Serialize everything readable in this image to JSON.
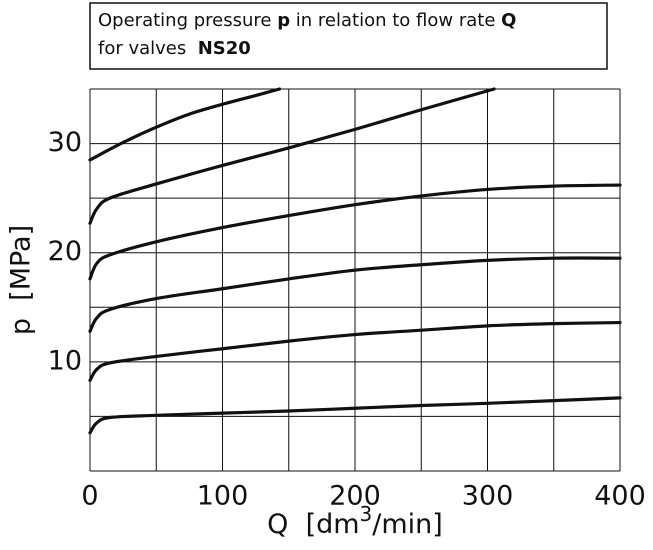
{
  "chart_data": {
    "type": "line",
    "title_lines": [
      [
        "Operating pressure ",
        "p",
        " in relation to flow rate ",
        "Q"
      ],
      [
        "for valves  ",
        "NS20"
      ]
    ],
    "xlabel": [
      "Q  [dm",
      "3",
      "/min]"
    ],
    "ylabel": "p  [MPa]",
    "xlim": [
      0,
      400
    ],
    "ylim": [
      0,
      35
    ],
    "xticks": [
      0,
      100,
      200,
      300,
      400
    ],
    "yticks": [
      10,
      20,
      30
    ],
    "xgrid": [
      0,
      50,
      100,
      150,
      200,
      250,
      300,
      350,
      400
    ],
    "ygrid": [
      0,
      5,
      10,
      15,
      20,
      25,
      30,
      35
    ],
    "grid": true,
    "series": [
      {
        "color": "#111111",
        "x": [
          0,
          25,
          50,
          75,
          100,
          125,
          143
        ],
        "values": [
          28.5,
          30.1,
          31.5,
          32.7,
          33.6,
          34.4,
          35
        ]
      },
      {
        "color": "#111111",
        "x": [
          0,
          5,
          15,
          50,
          100,
          150,
          200,
          250,
          305
        ],
        "values": [
          22.7,
          24,
          25,
          26.3,
          28,
          29.6,
          31.3,
          33.1,
          35
        ]
      },
      {
        "color": "#111111",
        "x": [
          0,
          5,
          15,
          50,
          100,
          150,
          200,
          250,
          300,
          350,
          400
        ],
        "values": [
          17.6,
          19,
          19.8,
          21,
          22.3,
          23.4,
          24.4,
          25.2,
          25.8,
          26.1,
          26.2
        ]
      },
      {
        "color": "#111111",
        "x": [
          0,
          5,
          15,
          50,
          100,
          150,
          200,
          250,
          300,
          350,
          400
        ],
        "values": [
          12.8,
          14,
          14.8,
          15.8,
          16.7,
          17.6,
          18.4,
          18.9,
          19.3,
          19.5,
          19.5
        ]
      },
      {
        "color": "#111111",
        "x": [
          0,
          5,
          15,
          50,
          100,
          150,
          200,
          250,
          300,
          350,
          400
        ],
        "values": [
          8.3,
          9.3,
          9.9,
          10.5,
          11.2,
          11.9,
          12.5,
          12.9,
          13.3,
          13.5,
          13.6
        ]
      },
      {
        "color": "#111111",
        "x": [
          0,
          5,
          15,
          50,
          100,
          150,
          200,
          250,
          300,
          350,
          400
        ],
        "values": [
          3.5,
          4.4,
          4.9,
          5.1,
          5.3,
          5.5,
          5.75,
          6,
          6.2,
          6.45,
          6.7
        ]
      }
    ]
  }
}
